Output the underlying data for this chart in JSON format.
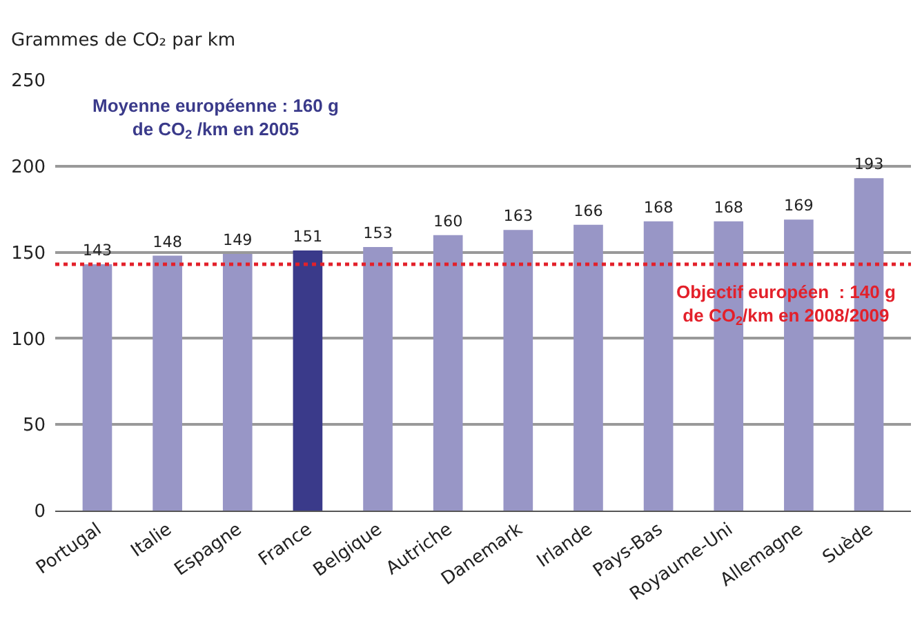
{
  "chart_data": {
    "type": "bar",
    "ylabel": "Grammes de CO₂ par km",
    "categories": [
      "Portugal",
      "Italie",
      "Espagne",
      "France",
      "Belgique",
      "Autriche",
      "Danemark",
      "Irlande",
      "Pays-Bas",
      "Royaume-Uni",
      "Allemagne",
      "Suède"
    ],
    "values": [
      143,
      148,
      149,
      151,
      153,
      160,
      163,
      166,
      168,
      168,
      169,
      193
    ],
    "colors": [
      "#9896c6",
      "#9896c6",
      "#9896c6",
      "#3a3a8a",
      "#9896c6",
      "#9896c6",
      "#9896c6",
      "#9896c6",
      "#9896c6",
      "#9896c6",
      "#9896c6",
      "#9896c6"
    ],
    "data_labels": true,
    "ylim": [
      0,
      250
    ],
    "yticks": [
      0,
      50,
      100,
      150,
      200,
      250
    ],
    "grid": "y",
    "ref_lines": [
      {
        "axis": "y",
        "value": 143,
        "color": "#e3202a",
        "line_style": "dotted"
      }
    ],
    "annotations": [
      "Moyenne européenne : 160 g\nde CO$_{2}$ /km en 2005",
      "Objectif européen  : 140 g\nde CO$_{2}$/km en 2008/2009"
    ]
  }
}
